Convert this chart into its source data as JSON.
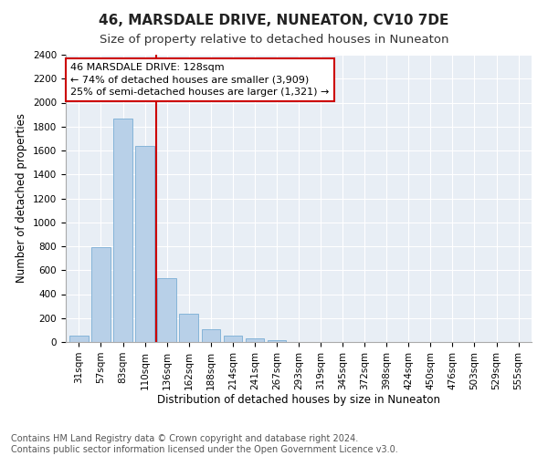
{
  "title": "46, MARSDALE DRIVE, NUNEATON, CV10 7DE",
  "subtitle": "Size of property relative to detached houses in Nuneaton",
  "xlabel": "Distribution of detached houses by size in Nuneaton",
  "ylabel": "Number of detached properties",
  "bar_labels": [
    "31sqm",
    "57sqm",
    "83sqm",
    "110sqm",
    "136sqm",
    "162sqm",
    "188sqm",
    "214sqm",
    "241sqm",
    "267sqm",
    "293sqm",
    "319sqm",
    "345sqm",
    "372sqm",
    "398sqm",
    "424sqm",
    "450sqm",
    "476sqm",
    "503sqm",
    "529sqm",
    "555sqm"
  ],
  "bar_values": [
    55,
    790,
    1870,
    1640,
    530,
    240,
    108,
    55,
    30,
    18,
    0,
    0,
    0,
    0,
    0,
    0,
    0,
    0,
    0,
    0,
    0
  ],
  "bar_color": "#b8d0e8",
  "bar_edgecolor": "#7aadd4",
  "vline_color": "#cc0000",
  "annotation_text": "46 MARSDALE DRIVE: 128sqm\n← 74% of detached houses are smaller (3,909)\n25% of semi-detached houses are larger (1,321) →",
  "annotation_box_color": "#cc0000",
  "annotation_bg": "#ffffff",
  "ylim": [
    0,
    2400
  ],
  "yticks": [
    0,
    200,
    400,
    600,
    800,
    1000,
    1200,
    1400,
    1600,
    1800,
    2000,
    2200,
    2400
  ],
  "footer_line1": "Contains HM Land Registry data © Crown copyright and database right 2024.",
  "footer_line2": "Contains public sector information licensed under the Open Government Licence v3.0.",
  "fig_bg_color": "#ffffff",
  "plot_bg_color": "#e8eef5",
  "title_fontsize": 11,
  "subtitle_fontsize": 9.5,
  "axis_label_fontsize": 8.5,
  "tick_fontsize": 7.5,
  "annotation_fontsize": 8,
  "footer_fontsize": 7
}
